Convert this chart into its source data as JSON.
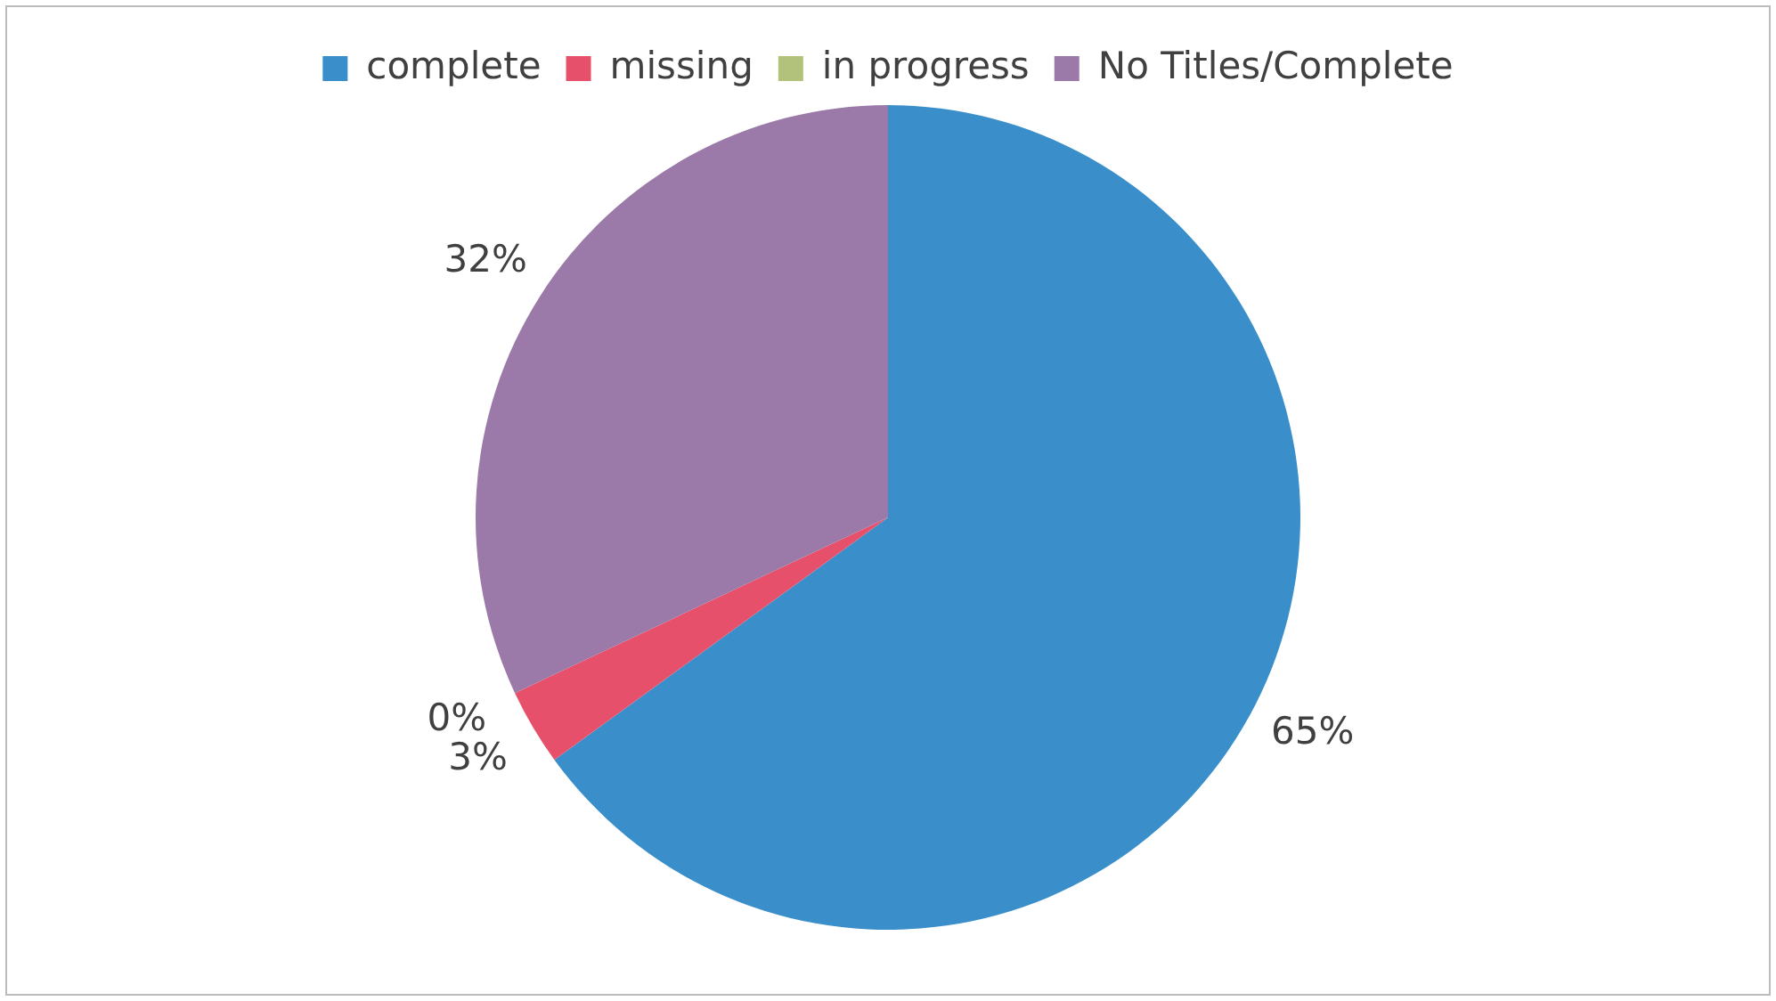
{
  "chart_data": {
    "type": "pie",
    "categories": [
      "complete",
      "missing",
      "in progress",
      "No Titles/Complete"
    ],
    "values": [
      65,
      3,
      0,
      32
    ],
    "colors": [
      "#3a8fcb",
      "#e6506b",
      "#b3c27a",
      "#9b7aa9"
    ],
    "value_labels": [
      "65%",
      "3%",
      "0%",
      "32%"
    ],
    "legend": "top"
  }
}
